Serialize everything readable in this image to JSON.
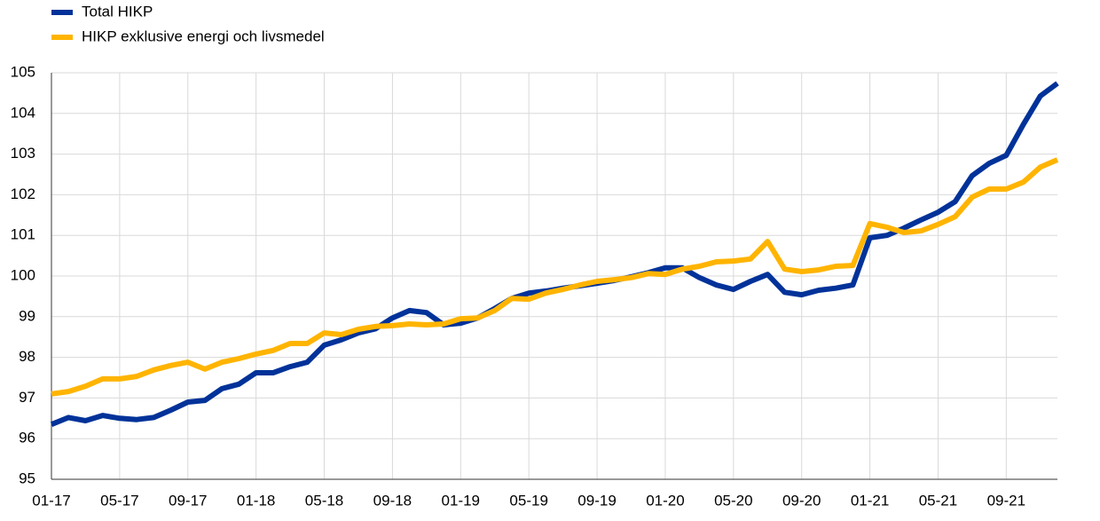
{
  "chart_data": {
    "type": "line",
    "categories": [
      "01-17",
      null,
      null,
      null,
      "05-17",
      null,
      null,
      null,
      "09-17",
      null,
      null,
      null,
      "01-18",
      null,
      null,
      null,
      "05-18",
      null,
      null,
      null,
      "09-18",
      null,
      null,
      null,
      "01-19",
      null,
      null,
      null,
      "05-19",
      null,
      null,
      null,
      "09-19",
      null,
      null,
      null,
      "01-20",
      null,
      null,
      null,
      "05-20",
      null,
      null,
      null,
      "09-20",
      null,
      null,
      null,
      "01-21",
      null,
      null,
      null,
      "05-21",
      null,
      null,
      null,
      "09-21",
      null,
      null,
      null
    ],
    "series": [
      {
        "name": "Total HIKP",
        "color": "#003299",
        "values": [
          96.35,
          96.52,
          96.44,
          96.57,
          96.5,
          96.47,
          96.52,
          96.7,
          96.9,
          96.94,
          97.23,
          97.34,
          97.62,
          97.62,
          97.77,
          97.88,
          98.3,
          98.43,
          98.6,
          98.7,
          98.97,
          99.15,
          99.1,
          98.8,
          98.84,
          98.97,
          99.2,
          99.45,
          99.58,
          99.63,
          99.7,
          99.76,
          99.82,
          99.89,
          99.98,
          100.08,
          100.2,
          100.2,
          99.96,
          99.78,
          99.67,
          99.87,
          100.04,
          99.6,
          99.54,
          99.65,
          99.7,
          99.78,
          100.94,
          101.0,
          101.18,
          101.38,
          101.57,
          101.83,
          102.47,
          102.77,
          102.97,
          103.73,
          104.43,
          104.74
        ]
      },
      {
        "name": "HIKP exklusive energi och livsmedel",
        "color": "#ffb400",
        "values": [
          97.1,
          97.16,
          97.29,
          97.47,
          97.47,
          97.53,
          97.69,
          97.8,
          97.88,
          97.71,
          97.88,
          97.97,
          98.08,
          98.17,
          98.34,
          98.34,
          98.6,
          98.56,
          98.69,
          98.76,
          98.78,
          98.82,
          98.8,
          98.82,
          98.95,
          98.97,
          99.15,
          99.45,
          99.43,
          99.58,
          99.67,
          99.78,
          99.87,
          99.91,
          99.96,
          100.06,
          100.04,
          100.17,
          100.24,
          100.35,
          100.37,
          100.42,
          100.85,
          100.17,
          100.11,
          100.15,
          100.24,
          100.26,
          101.29,
          101.2,
          101.07,
          101.11,
          101.27,
          101.46,
          101.94,
          102.14,
          102.14,
          102.31,
          102.68,
          102.86
        ]
      }
    ],
    "ylim": [
      95,
      105
    ],
    "yticks": [
      95,
      96,
      97,
      98,
      99,
      100,
      101,
      102,
      103,
      104,
      105
    ],
    "grid": true,
    "legend": "top-left"
  }
}
